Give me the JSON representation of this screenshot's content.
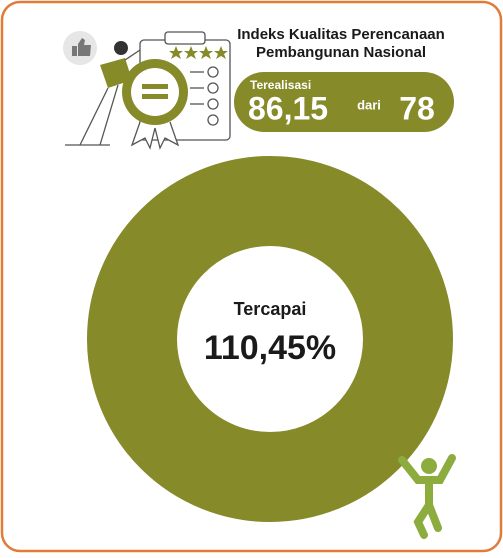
{
  "header": {
    "title_line1": "Indeks Kualitas Perencanaan",
    "title_line2": "Pembangunan Nasional"
  },
  "realization": {
    "label": "Terealisasi",
    "value": "86,15",
    "connector": "dari",
    "target": "78"
  },
  "achievement": {
    "label": "Tercapai",
    "value": "110,45%"
  }
}
